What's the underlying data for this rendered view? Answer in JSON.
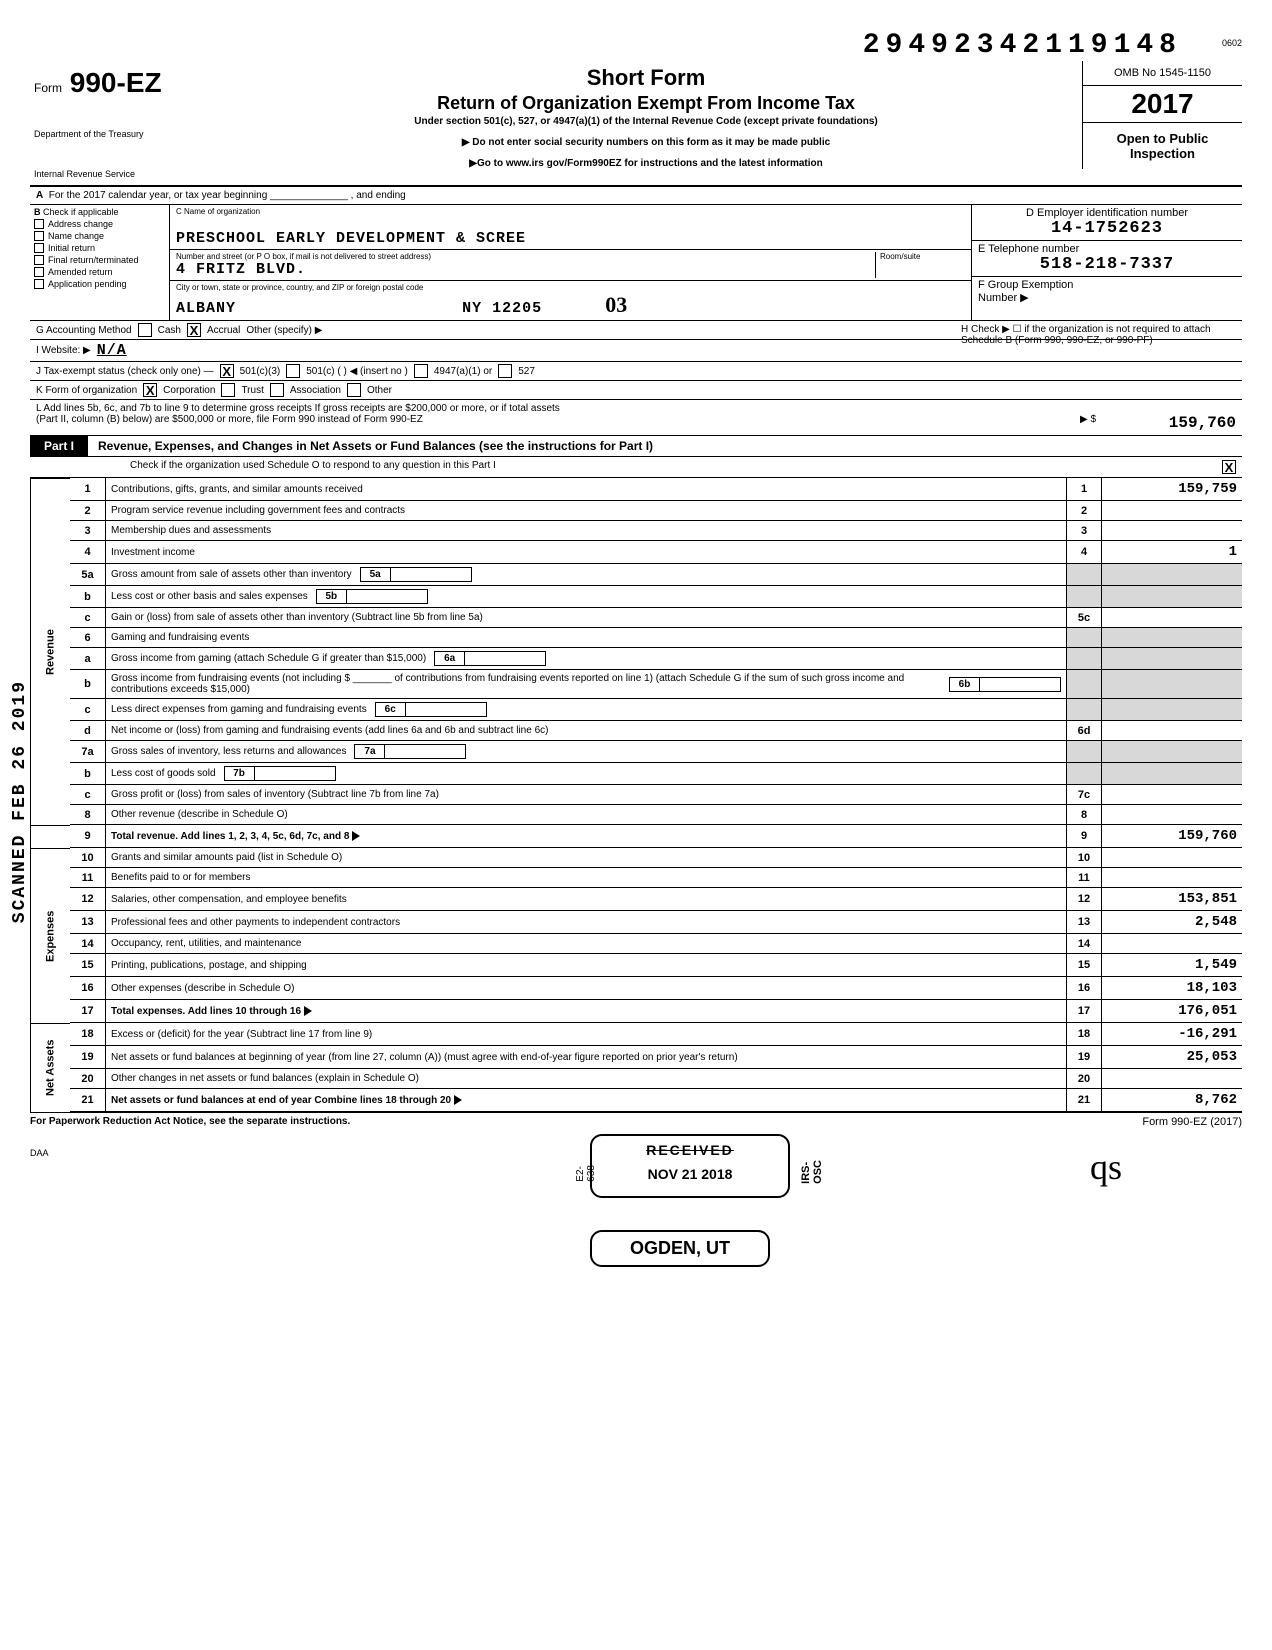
{
  "meta": {
    "topcode": "0602",
    "bignumber": "29492342119148",
    "omb": "OMB No 1545-1150",
    "year": "2017",
    "open_public": "Open to Public Inspection",
    "form_no_prefix": "Form",
    "form_no": "990-EZ",
    "dept1": "Department of the Treasury",
    "dept2": "Internal Revenue Service",
    "title_main": "Short Form",
    "title_sub": "Return of Organization Exempt From Income Tax",
    "under": "Under section 501(c), 527, or 4947(a)(1) of the Internal Revenue Code (except private foundations)",
    "note1": "▶ Do not enter social security numbers on this form as it may be made public",
    "note2": "▶Go to www.irs gov/Form990EZ for instructions and the latest information"
  },
  "rowA": "For the 2017 calendar year, or tax year beginning ______________ , and ending",
  "colB": {
    "hdr": "Check if applicable",
    "items": [
      "Address change",
      "Name change",
      "Initial return",
      "Final return/terminated",
      "Amended return",
      "Application pending"
    ]
  },
  "colC": {
    "hdr": "C  Name of organization",
    "name": "PRESCHOOL EARLY DEVELOPMENT & SCREE",
    "addr_lbl": "Number and street (or P O  box, if mail is not delivered to street address)",
    "room_lbl": "Room/suite",
    "addr": "4 FRITZ BLVD.",
    "city_lbl": "City or town, state or province, country, and ZIP or foreign postal code",
    "city": "ALBANY",
    "state_zip": "NY  12205"
  },
  "colD": {
    "hdr": "D  Employer identification number",
    "ein": "14-1752623",
    "tel_lbl": "E  Telephone number",
    "tel": "518-218-7337",
    "f_lbl": "F  Group Exemption",
    "f_num_lbl": "Number  ▶"
  },
  "hand03": "03",
  "rowG": {
    "lbl": "G  Accounting Method",
    "cash": "Cash",
    "accrual": "Accrual",
    "other": "Other (specify) ▶"
  },
  "rowH": "H  Check ▶ ☐  if the organization is not required to attach Schedule B (Form 990, 990-EZ, or 990-PF)",
  "rowI": {
    "lbl": "I   Website: ▶",
    "val": "N/A"
  },
  "rowJ": "J   Tax-exempt status (check only one) —",
  "rowJ_opts": [
    "501(c)(3)",
    "501(c) (     ) ◀ (insert no )",
    "4947(a)(1) or",
    "527"
  ],
  "rowK": {
    "lbl": "K  Form of organization",
    "opts": [
      "Corporation",
      "Trust",
      "Association",
      "Other"
    ]
  },
  "rowL": {
    "text1": "L   Add lines 5b, 6c, and 7b to line 9 to determine gross receipts  If gross receipts are $200,000 or more, or if total assets",
    "text2": "(Part II, column (B) below) are $500,000 or more, file Form 990 instead of Form 990-EZ",
    "arrow": "▶  $",
    "amt": "159,760"
  },
  "part1": {
    "lbl": "Part I",
    "title": "Revenue, Expenses, and Changes in Net Assets or Fund Balances (see the instructions for Part I)",
    "check": "Check if the organization used Schedule O to respond to any question in this Part I"
  },
  "sides": {
    "rev": "Revenue",
    "exp": "Expenses",
    "net": "Net Assets"
  },
  "lines": {
    "1": {
      "n": "1",
      "d": "Contributions, gifts, grants, and similar amounts received",
      "amt": "159,759"
    },
    "2": {
      "n": "2",
      "d": "Program service revenue including government fees and contracts",
      "amt": ""
    },
    "3": {
      "n": "3",
      "d": "Membership dues and assessments",
      "amt": ""
    },
    "4": {
      "n": "4",
      "d": "Investment income",
      "amt": "1"
    },
    "5a": {
      "n": "5a",
      "d": "Gross amount from sale of assets other than inventory"
    },
    "5b": {
      "n": "b",
      "d": "Less  cost or other basis and sales expenses"
    },
    "5c": {
      "n": "c",
      "d": "Gain or (loss) from sale of assets other than inventory (Subtract line 5b from line 5a)",
      "nc": "5c",
      "amt": ""
    },
    "6": {
      "n": "6",
      "d": "Gaming and fundraising events"
    },
    "6a": {
      "n": "a",
      "d": "Gross income from gaming (attach Schedule G if greater than $15,000)"
    },
    "6b": {
      "n": "b",
      "d": "Gross income from fundraising events (not including $ _______ of contributions from fundraising events reported on line 1) (attach Schedule G if the sum of such gross income and contributions exceeds $15,000)"
    },
    "6c": {
      "n": "c",
      "d": "Less  direct expenses from gaming and fundraising events"
    },
    "6d": {
      "n": "d",
      "d": "Net income or (loss) from gaming and fundraising events (add lines 6a and 6b and subtract line 6c)",
      "nc": "6d",
      "amt": ""
    },
    "7a": {
      "n": "7a",
      "d": "Gross sales of inventory, less returns and allowances"
    },
    "7b": {
      "n": "b",
      "d": "Less  cost of goods sold"
    },
    "7c": {
      "n": "c",
      "d": "Gross profit or (loss) from sales of inventory (Subtract line 7b from line 7a)",
      "nc": "7c",
      "amt": ""
    },
    "8": {
      "n": "8",
      "d": "Other revenue (describe in Schedule O)",
      "amt": ""
    },
    "9": {
      "n": "9",
      "d": "Total revenue. Add lines 1, 2, 3, 4, 5c, 6d, 7c, and 8",
      "amt": "159,760",
      "tri": true
    },
    "10": {
      "n": "10",
      "d": "Grants and similar amounts paid (list in Schedule O)",
      "amt": ""
    },
    "11": {
      "n": "11",
      "d": "Benefits paid to or for members",
      "amt": ""
    },
    "12": {
      "n": "12",
      "d": "Salaries, other compensation, and employee benefits",
      "amt": "153,851"
    },
    "13": {
      "n": "13",
      "d": "Professional fees and other payments to independent contractors",
      "amt": "2,548"
    },
    "14": {
      "n": "14",
      "d": "Occupancy, rent, utilities, and maintenance",
      "amt": ""
    },
    "15": {
      "n": "15",
      "d": "Printing, publications, postage, and shipping",
      "amt": "1,549"
    },
    "16": {
      "n": "16",
      "d": "Other expenses (describe in Schedule O)",
      "amt": "18,103"
    },
    "17": {
      "n": "17",
      "d": "Total expenses. Add lines 10 through 16",
      "amt": "176,051",
      "tri": true
    },
    "18": {
      "n": "18",
      "d": "Excess or (deficit) for the year (Subtract line 17 from line 9)",
      "amt": "-16,291"
    },
    "19": {
      "n": "19",
      "d": "Net assets or fund balances at beginning of year (from line 27, column (A)) (must agree with end-of-year figure reported on prior year's return)",
      "amt": "25,053"
    },
    "20": {
      "n": "20",
      "d": "Other changes in net assets or fund balances (explain in Schedule O)",
      "amt": ""
    },
    "21": {
      "n": "21",
      "d": "Net assets or fund balances at end of year  Combine lines 18 through 20",
      "amt": "8,762",
      "tri": true
    }
  },
  "inner": {
    "5a": "5a",
    "5b": "5b",
    "6a": "6a",
    "6b": "6b",
    "6c": "6c",
    "7a": "7a",
    "7b": "7b"
  },
  "stamp": {
    "received": "RECEIVED",
    "date": "NOV 21 2018",
    "ogden": "OGDEN, UT",
    "irs_osc": "IRS-OSC",
    "e2": "E2-638"
  },
  "foot": {
    "l": "For Paperwork Reduction Act Notice, see the separate instructions.",
    "r": "Form 990-EZ (2017)",
    "daa": "DAA"
  },
  "scanned": "SCANNED FEB 26 2019",
  "sig": "qs"
}
